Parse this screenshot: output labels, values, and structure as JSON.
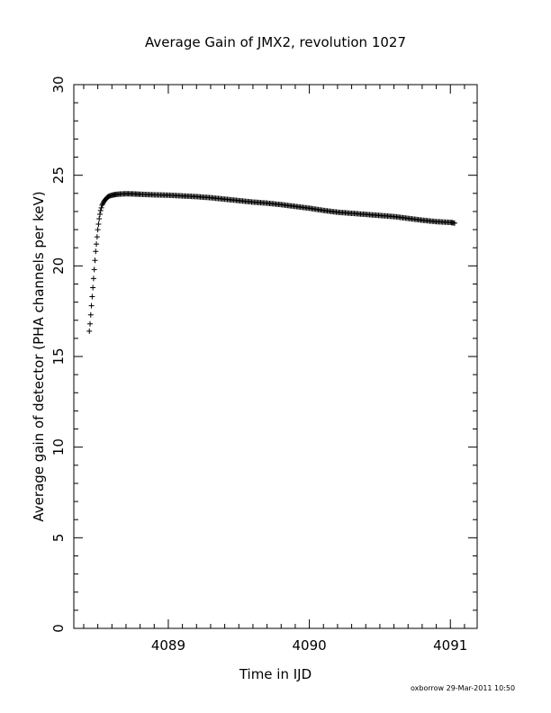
{
  "chart_data": {
    "type": "scatter",
    "title": "Average Gain of JMX2, revolution 1027",
    "xlabel": "Time in IJD",
    "ylabel": "Average gain of detector (PHA channels per keV)",
    "xlim": [
      4088.33,
      4091.19
    ],
    "ylim": [
      0,
      30
    ],
    "x_ticks": [
      4089,
      4090,
      4091
    ],
    "x_tick_labels": [
      "4089",
      "4090",
      "4091"
    ],
    "x_minor_step": 0.1,
    "y_ticks": [
      0,
      5,
      10,
      15,
      20,
      25,
      30
    ],
    "y_tick_labels": [
      "0",
      "5",
      "10",
      "15",
      "20",
      "25",
      "30"
    ],
    "y_minor_step": 1,
    "marker": "plus",
    "grid": false,
    "series": [
      {
        "x": [
          4088.44,
          4088.445,
          4088.45,
          4088.455,
          4088.46,
          4088.465,
          4088.47,
          4088.475,
          4088.48,
          4088.485,
          4088.49,
          4088.495,
          4088.5,
          4088.505,
          4088.51,
          4088.515,
          4088.52,
          4088.525,
          4088.53,
          4088.54,
          4088.55,
          4088.56,
          4088.57,
          4088.58,
          4088.6,
          4088.62,
          4088.65,
          4088.7,
          4088.75,
          4088.8,
          4088.9,
          4089.0,
          4089.1,
          4089.2,
          4089.3,
          4089.4,
          4089.5,
          4089.6,
          4089.7,
          4089.8,
          4089.9,
          4090.0,
          4090.1,
          4090.2,
          4090.3,
          4090.4,
          4090.5,
          4090.6,
          4090.7,
          4090.8,
          4090.9,
          4091.0,
          4091.03
        ],
        "y": [
          16.4,
          16.8,
          17.3,
          17.8,
          18.3,
          18.8,
          19.3,
          19.8,
          20.3,
          20.8,
          21.2,
          21.6,
          22.0,
          22.3,
          22.6,
          22.85,
          23.05,
          23.2,
          23.35,
          23.5,
          23.62,
          23.72,
          23.8,
          23.85,
          23.9,
          23.93,
          23.96,
          23.98,
          23.97,
          23.95,
          23.92,
          23.9,
          23.86,
          23.82,
          23.76,
          23.68,
          23.6,
          23.52,
          23.46,
          23.38,
          23.28,
          23.18,
          23.06,
          22.96,
          22.9,
          22.84,
          22.78,
          22.72,
          22.62,
          22.52,
          22.44,
          22.4,
          22.36
        ]
      }
    ]
  },
  "footer": {
    "text": "oxborrow 29-Mar-2011 10:50"
  }
}
